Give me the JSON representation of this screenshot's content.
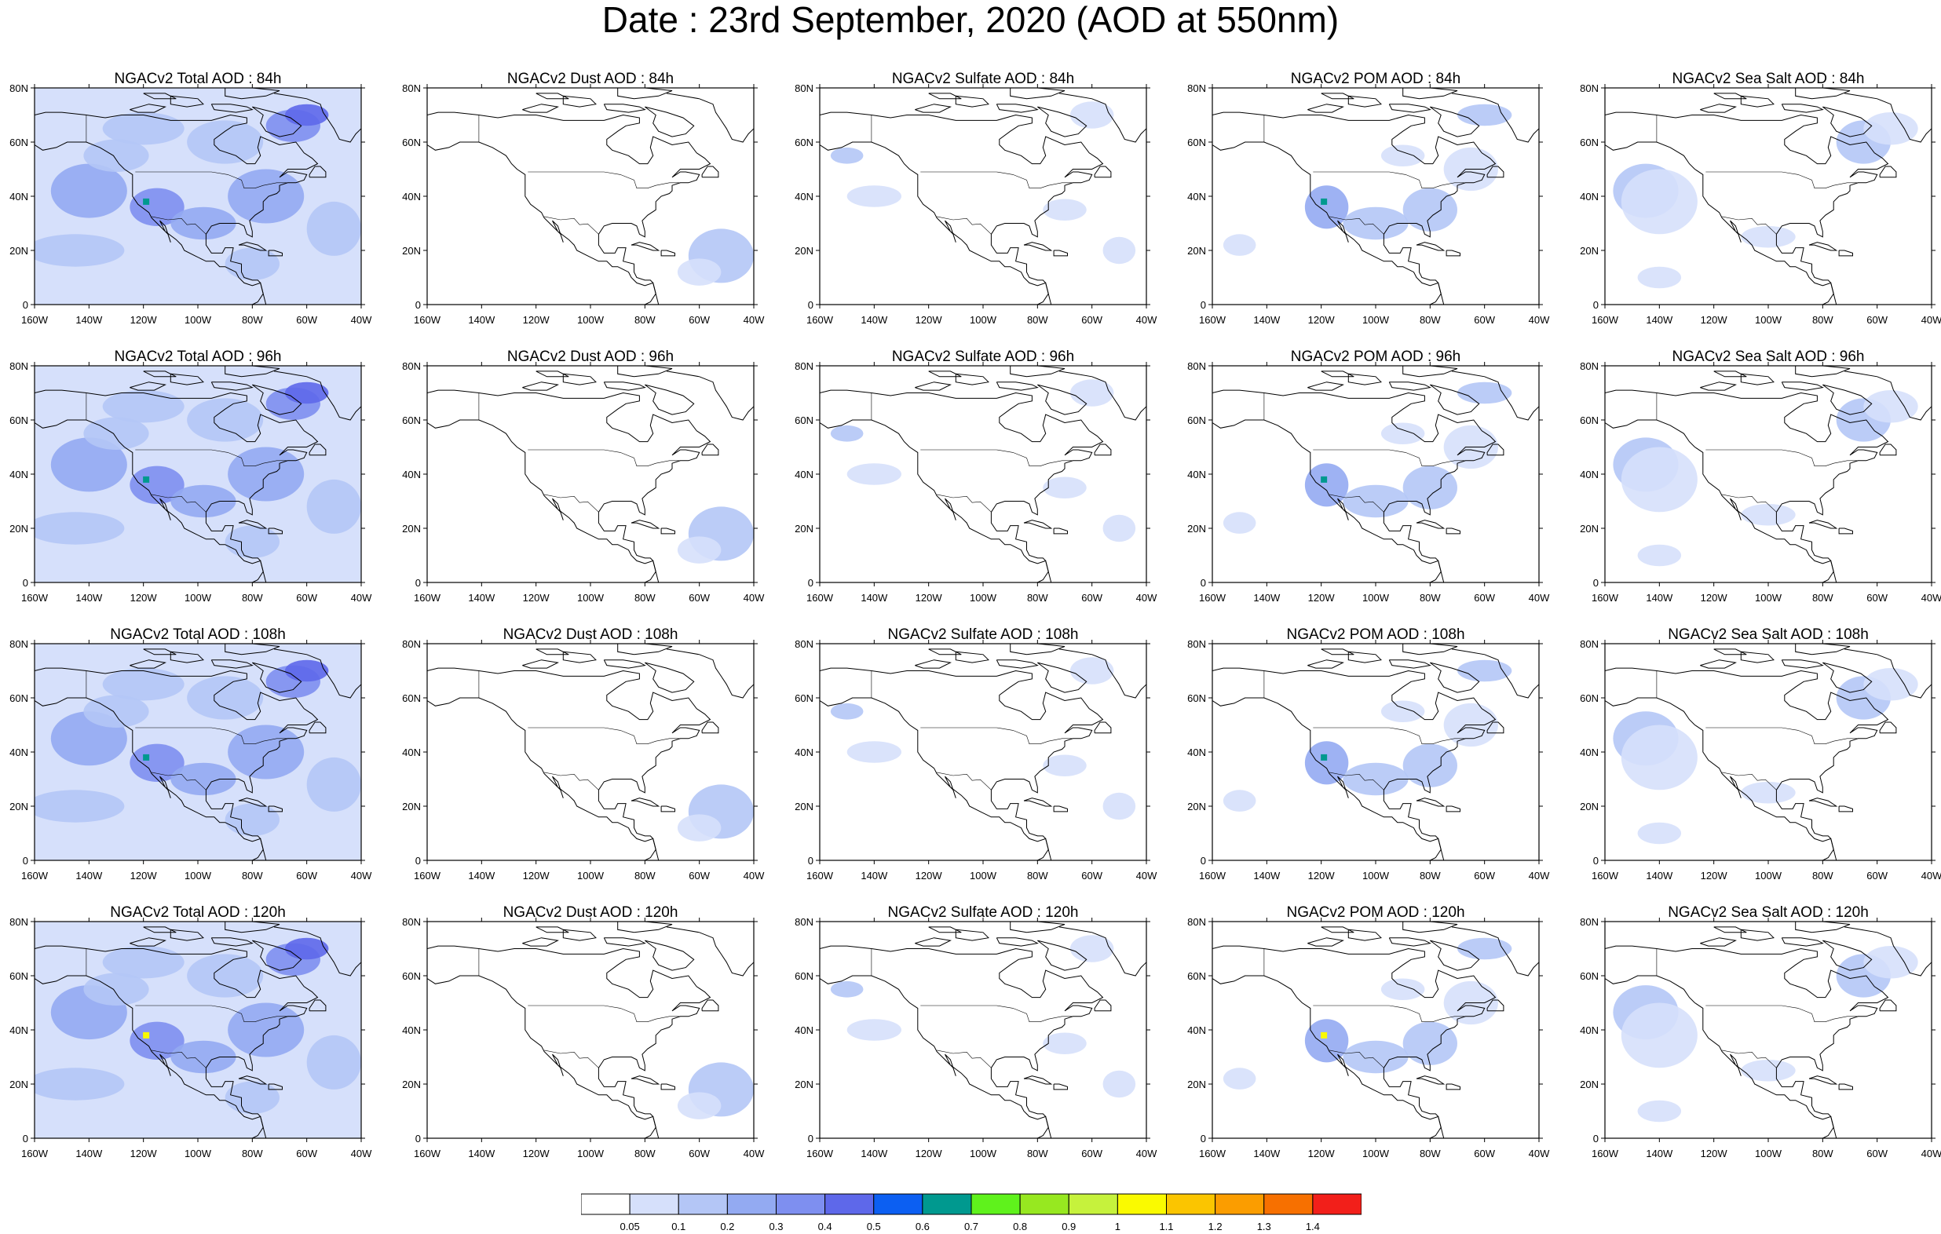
{
  "main_title": "Date : 23rd September, 2020 (AOD at 550nm)",
  "lon_labels": [
    "160W",
    "140W",
    "120W",
    "100W",
    "80W",
    "60W",
    "40W"
  ],
  "lat_labels": [
    "0",
    "20N",
    "40N",
    "60N",
    "80N"
  ],
  "colorbar": {
    "labels": [
      "0.05",
      "0.1",
      "0.2",
      "0.3",
      "0.4",
      "0.5",
      "0.6",
      "0.7",
      "0.8",
      "0.9",
      "1",
      "1.1",
      "1.2",
      "1.3",
      "1.4"
    ],
    "colors": [
      "#ffffff",
      "#d6e0fb",
      "#b4c6f6",
      "#93aaf2",
      "#7e8ff0",
      "#5e68ea",
      "#0c5ff2",
      "#00998f",
      "#5ff21c",
      "#97e820",
      "#c6f23c",
      "#fafa00",
      "#fbc500",
      "#fb9d00",
      "#f77000",
      "#f21f1a"
    ]
  },
  "panels": [
    {
      "title": "NGACv2 Total AOD : 84h",
      "species": "total"
    },
    {
      "title": "NGACv2 Dust AOD : 84h",
      "species": "dust"
    },
    {
      "title": "NGACv2 Sulfate AOD : 84h",
      "species": "sulfate"
    },
    {
      "title": "NGACv2 POM AOD : 84h",
      "species": "pom"
    },
    {
      "title": "NGACv2 Sea Salt AOD : 84h",
      "species": "seasalt"
    },
    {
      "title": "NGACv2 Total AOD : 96h",
      "species": "total"
    },
    {
      "title": "NGACv2 Dust AOD : 96h",
      "species": "dust"
    },
    {
      "title": "NGACv2 Sulfate AOD : 96h",
      "species": "sulfate"
    },
    {
      "title": "NGACv2 POM AOD : 96h",
      "species": "pom"
    },
    {
      "title": "NGACv2 Sea Salt AOD : 96h",
      "species": "seasalt"
    },
    {
      "title": "NGACv2 Total AOD : 108h",
      "species": "total"
    },
    {
      "title": "NGACv2 Dust AOD : 108h",
      "species": "dust"
    },
    {
      "title": "NGACv2 Sulfate AOD : 108h",
      "species": "sulfate"
    },
    {
      "title": "NGACv2 POM AOD : 108h",
      "species": "pom"
    },
    {
      "title": "NGACv2 Sea Salt AOD : 108h",
      "species": "seasalt"
    },
    {
      "title": "NGACv2 Total AOD : 120h",
      "species": "total"
    },
    {
      "title": "NGACv2 Dust AOD : 120h",
      "species": "dust"
    },
    {
      "title": "NGACv2 Sulfate AOD : 120h",
      "species": "sulfate"
    },
    {
      "title": "NGACv2 POM AOD : 120h",
      "species": "pom"
    },
    {
      "title": "NGACv2 Sea Salt  AOD : 120h",
      "species": "seasalt"
    }
  ]
}
